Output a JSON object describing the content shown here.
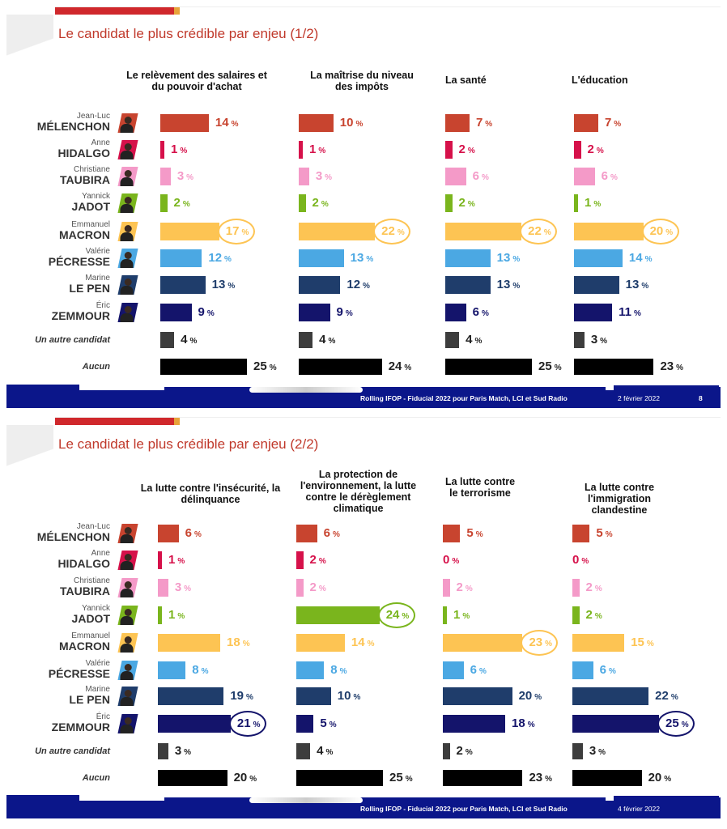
{
  "colors": {
    "melenchon": "#c8442f",
    "hidalgo": "#d6114a",
    "taubira": "#f49ac8",
    "jadot": "#7ab51d",
    "macron": "#fdc453",
    "pecresse": "#4ba8e3",
    "lepen": "#1f3d6b",
    "zemmour": "#14146b",
    "autre": "#3d3d3d",
    "aucun": "#000000"
  },
  "candidates": [
    {
      "key": "melenchon",
      "first": "Jean-Luc",
      "last": "MÉLENCHON"
    },
    {
      "key": "hidalgo",
      "first": "Anne",
      "last": "HIDALGO"
    },
    {
      "key": "taubira",
      "first": "Christiane",
      "last": "TAUBIRA"
    },
    {
      "key": "jadot",
      "first": "Yannick",
      "last": "JADOT"
    },
    {
      "key": "macron",
      "first": "Emmanuel",
      "last": "MACRON"
    },
    {
      "key": "pecresse",
      "first": "Valérie",
      "last": "PÉCRESSE"
    },
    {
      "key": "lepen",
      "first": "Marine",
      "last": "LE PEN"
    },
    {
      "key": "zemmour",
      "first": "Éric",
      "last": "ZEMMOUR"
    },
    {
      "key": "autre",
      "label": "Un autre candidat"
    },
    {
      "key": "aucun",
      "label": "Aucun"
    }
  ],
  "percent_sign": "%",
  "slides": [
    {
      "title": "Le candidat le plus crédible par enjeu (1/2)",
      "footer": {
        "source": "Rolling IFOP - Fiducial 2022 pour Paris Match, LCI et Sud Radio",
        "date": "2 février 2022",
        "page": "8"
      },
      "columns": [
        {
          "header": "Le relèvement des salaires et du pouvoir d'achat",
          "values": [
            14,
            1,
            3,
            2,
            17,
            12,
            13,
            9,
            4,
            25
          ],
          "highlight": 4
        },
        {
          "header": "La maîtrise du niveau des impôts",
          "values": [
            10,
            1,
            3,
            2,
            22,
            13,
            12,
            9,
            4,
            24
          ],
          "highlight": 4
        },
        {
          "header": "La santé",
          "values": [
            7,
            2,
            6,
            2,
            22,
            13,
            13,
            6,
            4,
            25
          ],
          "highlight": 4
        },
        {
          "header": "L'éducation",
          "values": [
            7,
            2,
            6,
            1,
            20,
            14,
            13,
            11,
            3,
            23
          ],
          "highlight": 4
        }
      ]
    },
    {
      "title": "Le candidat le plus crédible par enjeu (2/2)",
      "footer": {
        "source": "Rolling IFOP - Fiducial 2022 pour Paris Match, LCI et Sud Radio",
        "date": "4 février 2022"
      },
      "columns": [
        {
          "header": "La lutte contre l'insécurité, la délinquance",
          "values": [
            6,
            1,
            3,
            1,
            18,
            8,
            19,
            21,
            3,
            20
          ],
          "highlight": 7
        },
        {
          "header": "La protection de l'environnement, la lutte contre le dérèglement climatique",
          "values": [
            6,
            2,
            2,
            24,
            14,
            8,
            10,
            5,
            4,
            25
          ],
          "highlight": 3
        },
        {
          "header": "La lutte contre le terrorisme",
          "values": [
            5,
            0,
            2,
            1,
            23,
            6,
            20,
            18,
            2,
            23
          ],
          "highlight": 4
        },
        {
          "header": "La lutte contre l'immigration clandestine",
          "values": [
            5,
            0,
            2,
            2,
            15,
            6,
            22,
            25,
            3,
            20
          ],
          "highlight": 7
        }
      ]
    }
  ]
}
